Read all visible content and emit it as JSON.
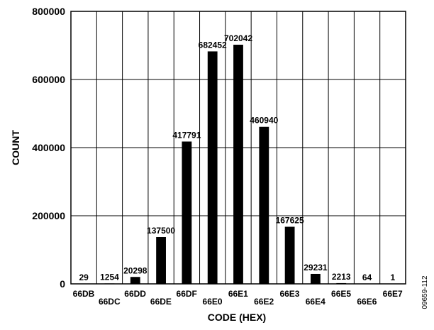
{
  "chart_data": {
    "type": "bar",
    "xlabel": "CODE (HEX)",
    "ylabel": "COUNT",
    "ylim": [
      0,
      800000
    ],
    "yticks": [
      0,
      200000,
      400000,
      600000,
      800000
    ],
    "grid": true,
    "categories": [
      "66DB",
      "66DC",
      "66DD",
      "66DE",
      "66DF",
      "66E0",
      "66E1",
      "66E2",
      "66E3",
      "66E4",
      "66E5",
      "66E6",
      "66E7"
    ],
    "values": [
      29,
      1254,
      20298,
      137500,
      417791,
      682452,
      702042,
      460940,
      167625,
      29231,
      2213,
      64,
      1
    ],
    "bar_color": "#000000"
  },
  "figure_number": "09659-112"
}
